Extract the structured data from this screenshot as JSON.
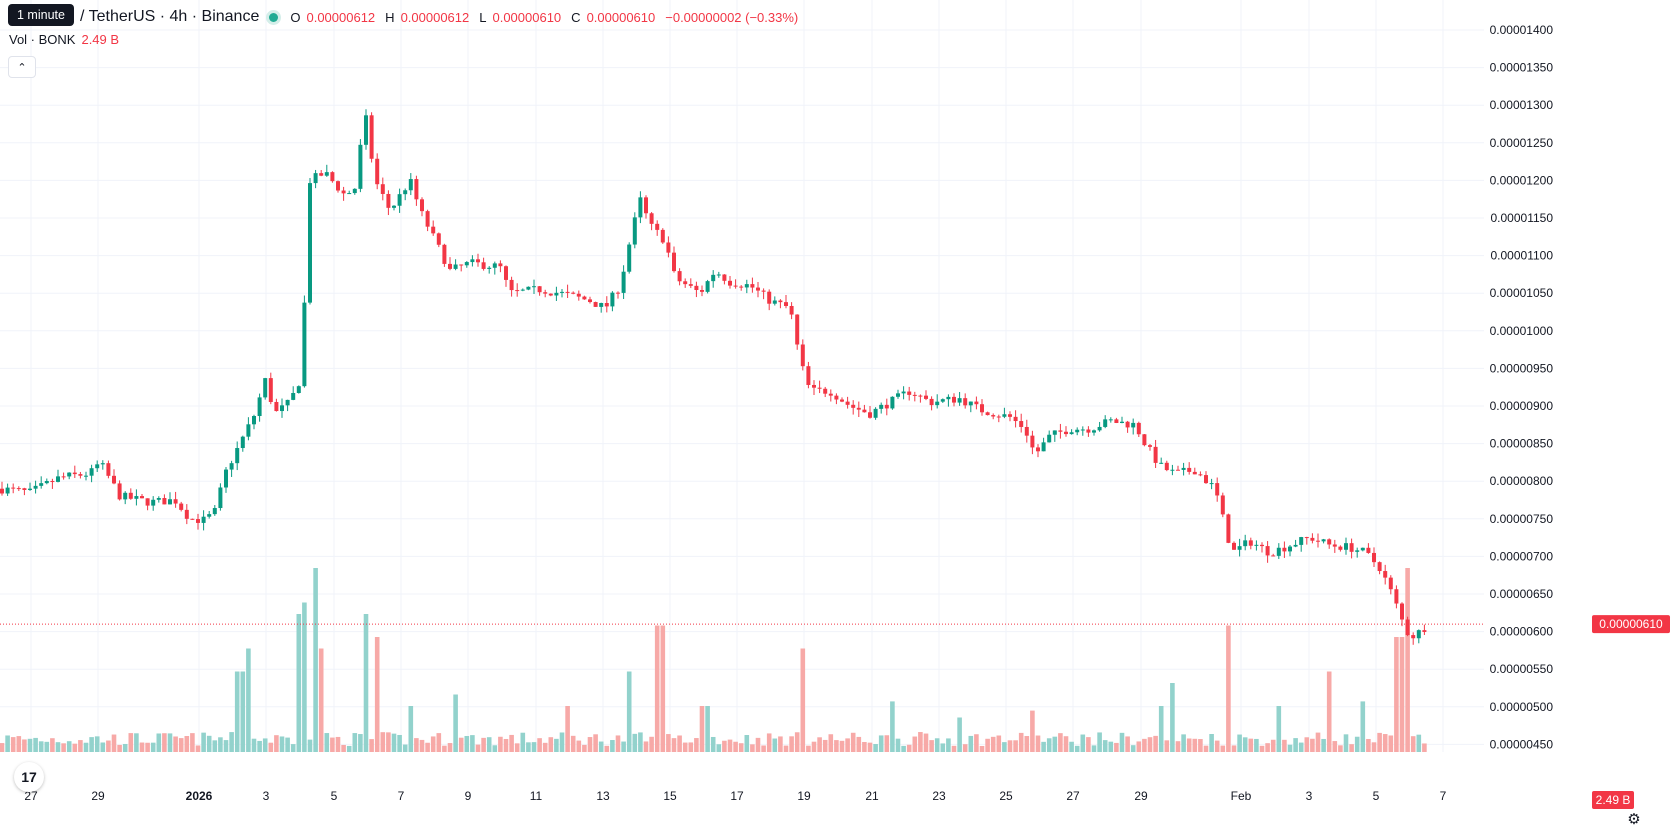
{
  "header": {
    "timeframe_badge": "1 minute",
    "symbol": "/ TetherUS · 4h · Binance",
    "ohlc": [
      {
        "key": "O",
        "value": "0.00000612"
      },
      {
        "key": "H",
        "value": "0.00000612"
      },
      {
        "key": "L",
        "value": "0.00000610"
      },
      {
        "key": "C",
        "value": "0.00000610"
      }
    ],
    "change": "−0.00000002 (−0.33%)",
    "volume_label": "Vol · BONK",
    "volume_value": "2.49 B"
  },
  "colors": {
    "up": "#089981",
    "down": "#f23645",
    "up_vol": "#92d2cc",
    "down_vol": "#f7a9a7",
    "grid": "#f0f3fa"
  },
  "icons": {
    "collapse": "chevron-up-icon",
    "logo": "tradingview-logo-icon",
    "settings": "gear-icon"
  },
  "chart_data": {
    "type": "candlestick",
    "y_axis_ticks": [
      "0.00001400",
      "0.00001350",
      "0.00001300",
      "0.00001250",
      "0.00001200",
      "0.00001150",
      "0.00001100",
      "0.00001050",
      "0.00001000",
      "0.00000950",
      "0.00000900",
      "0.00000850",
      "0.00000800",
      "0.00000750",
      "0.00000700",
      "0.00000650",
      "0.00000600",
      "0.00000550",
      "0.00000500",
      "0.00000450"
    ],
    "ylim": [
      4.4e-06,
      1.41e-05
    ],
    "x_axis_ticks": [
      "27",
      "29",
      "2026",
      "3",
      "5",
      "7",
      "9",
      "11",
      "13",
      "15",
      "17",
      "19",
      "21",
      "23",
      "25",
      "27",
      "29",
      "Feb",
      "3",
      "5",
      "7"
    ],
    "last_price_label": "0.00000610",
    "last_price": 6.1e-06,
    "volume_badge": "2.49 B",
    "price_path": [
      [
        0,
        7.9e-06
      ],
      [
        30,
        7.85e-06
      ],
      [
        60,
        8.05e-06
      ],
      [
        90,
        8.1e-06
      ],
      [
        100,
        8.25e-06
      ],
      [
        120,
        7.8e-06
      ],
      [
        150,
        7.72e-06
      ],
      [
        175,
        7.75e-06
      ],
      [
        190,
        7.5e-06
      ],
      [
        205,
        7.48e-06
      ],
      [
        215,
        7.6e-06
      ],
      [
        225,
        8.1e-06
      ],
      [
        240,
        8.5e-06
      ],
      [
        255,
        8.9e-06
      ],
      [
        265,
        9.35e-06
      ],
      [
        275,
        8.9e-06
      ],
      [
        290,
        9.05e-06
      ],
      [
        300,
        9.35e-06
      ],
      [
        305,
        1.05e-05
      ],
      [
        310,
        1.2e-05
      ],
      [
        325,
        1.21e-05
      ],
      [
        345,
        1.18e-05
      ],
      [
        355,
        1.19e-05
      ],
      [
        365,
        1.29e-05
      ],
      [
        375,
        1.2e-05
      ],
      [
        390,
        1.16e-05
      ],
      [
        410,
        1.2e-05
      ],
      [
        420,
        1.16e-05
      ],
      [
        435,
        1.12e-05
      ],
      [
        450,
        1.08e-05
      ],
      [
        470,
        1.09e-05
      ],
      [
        500,
        1.085e-05
      ],
      [
        510,
        1.05e-05
      ],
      [
        540,
        1.055e-05
      ],
      [
        560,
        1.05e-05
      ],
      [
        590,
        1.04e-05
      ],
      [
        605,
        1.03e-05
      ],
      [
        620,
        1.06e-05
      ],
      [
        630,
        1.12e-05
      ],
      [
        640,
        1.175e-05
      ],
      [
        650,
        1.14e-05
      ],
      [
        665,
        1.12e-05
      ],
      [
        675,
        1.07e-05
      ],
      [
        700,
        1.05e-05
      ],
      [
        715,
        1.08e-05
      ],
      [
        730,
        1.065e-05
      ],
      [
        750,
        1.06e-05
      ],
      [
        770,
        1.04e-05
      ],
      [
        790,
        1.03e-05
      ],
      [
        800,
        9.6e-06
      ],
      [
        810,
        9.2e-06
      ],
      [
        830,
        9.2e-06
      ],
      [
        850,
        9e-06
      ],
      [
        870,
        8.9e-06
      ],
      [
        890,
        9.05e-06
      ],
      [
        910,
        9.2e-06
      ],
      [
        930,
        9.05e-06
      ],
      [
        960,
        9.1e-06
      ],
      [
        980,
        8.95e-06
      ],
      [
        1010,
        8.85e-06
      ],
      [
        1025,
        8.7e-06
      ],
      [
        1035,
        8.35e-06
      ],
      [
        1050,
        8.6e-06
      ],
      [
        1070,
        8.7e-06
      ],
      [
        1090,
        8.7e-06
      ],
      [
        1110,
        8.8e-06
      ],
      [
        1135,
        8.75e-06
      ],
      [
        1145,
        8.5e-06
      ],
      [
        1160,
        8.2e-06
      ],
      [
        1175,
        8.1e-06
      ],
      [
        1195,
        8.15e-06
      ],
      [
        1215,
        7.9e-06
      ],
      [
        1225,
        7.4e-06
      ],
      [
        1232,
        7.05e-06
      ],
      [
        1250,
        7.2e-06
      ],
      [
        1270,
        7.05e-06
      ],
      [
        1290,
        7.15e-06
      ],
      [
        1310,
        7.25e-06
      ],
      [
        1330,
        7.15e-06
      ],
      [
        1350,
        7.12e-06
      ],
      [
        1365,
        7.05e-06
      ],
      [
        1380,
        6.85e-06
      ],
      [
        1392,
        6.5e-06
      ],
      [
        1402,
        6.15e-06
      ],
      [
        1410,
        5.92e-06
      ],
      [
        1420,
        6e-06
      ],
      [
        1428,
        6.1e-06
      ]
    ],
    "volume_spikes": [
      [
        240,
        0.35
      ],
      [
        250,
        0.45
      ],
      [
        300,
        0.6
      ],
      [
        305,
        0.65
      ],
      [
        315,
        0.8
      ],
      [
        320,
        0.45
      ],
      [
        365,
        0.6
      ],
      [
        375,
        0.5
      ],
      [
        410,
        0.2
      ],
      [
        455,
        0.25
      ],
      [
        570,
        0.2
      ],
      [
        630,
        0.35
      ],
      [
        660,
        0.55
      ],
      [
        705,
        0.2
      ],
      [
        805,
        0.45
      ],
      [
        890,
        0.22
      ],
      [
        960,
        0.15
      ],
      [
        1030,
        0.18
      ],
      [
        1160,
        0.2
      ],
      [
        1175,
        0.3
      ],
      [
        1230,
        0.55
      ],
      [
        1280,
        0.2
      ],
      [
        1330,
        0.35
      ],
      [
        1365,
        0.22
      ],
      [
        1395,
        0.5
      ],
      [
        1402,
        0.5
      ],
      [
        1410,
        0.8
      ]
    ]
  }
}
